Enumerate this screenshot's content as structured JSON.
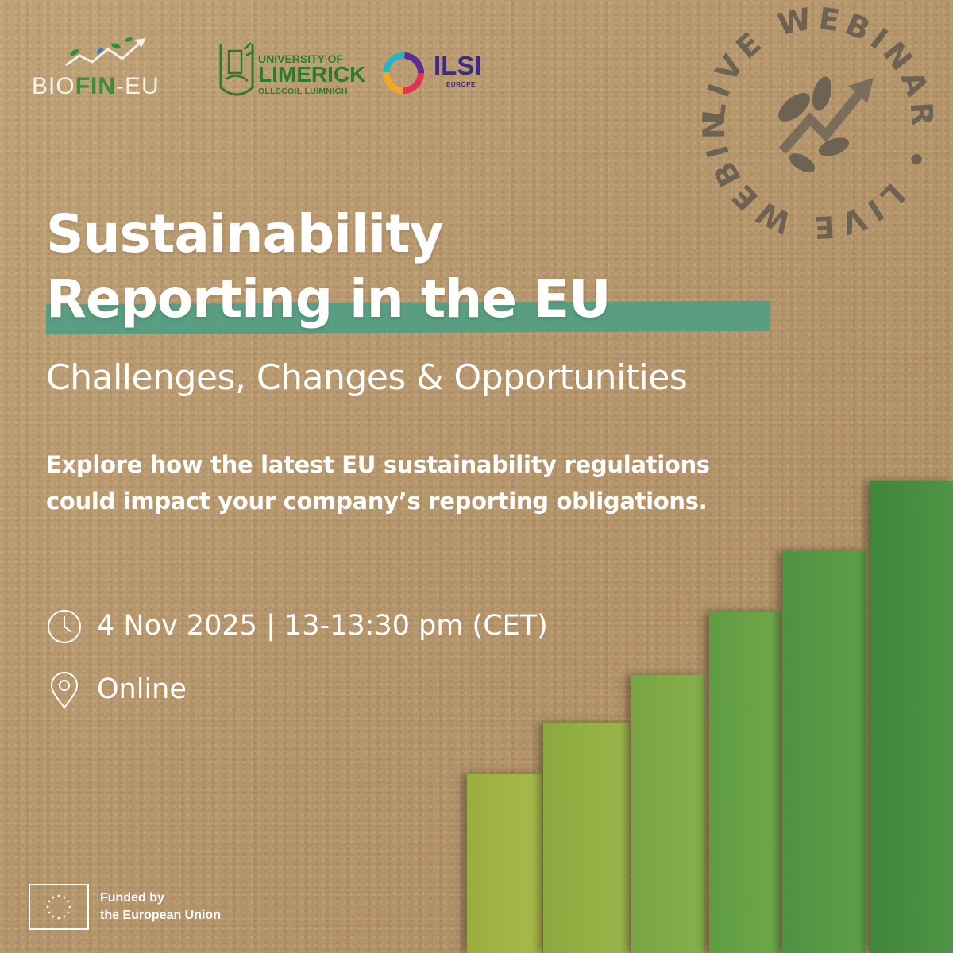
{
  "logos": {
    "biofin": {
      "prefix": "BIO",
      "highlight": "FIN",
      "suffix": "-EU"
    },
    "limerick": {
      "line1": "UNIVERSITY OF",
      "line2": "LIMERICK",
      "line3": "OLLSCOIL LUIMNIGH"
    },
    "ilsi": {
      "name": "ILSI",
      "sub": "EUROPE"
    }
  },
  "seal": {
    "text": "LIVE WEBINAR • LIVE WEBINAR •"
  },
  "headline": {
    "line1": "Sustainability",
    "line2": "Reporting in the EU",
    "subtitle": "Challenges, Changes & Opportunities"
  },
  "description": "Explore how the latest EU sustainability regulations could impact your company’s reporting obligations.",
  "event": {
    "datetime": "4 Nov 2025 | 13-13:30 pm (CET)",
    "location": "Online"
  },
  "footer": {
    "funded_line1": "Funded by",
    "funded_line2": "the European Union"
  },
  "icons": {
    "time": "clock-icon",
    "place": "location-pin-icon",
    "eu": "eu-flag-icon"
  },
  "colors": {
    "background": "#b89a6e",
    "accent_teal": "#4f9f84",
    "brand_green": "#2d7a30",
    "ilsi_purple": "#3a2a8c",
    "bars": [
      "#a3b543",
      "#93b344",
      "#7eaa46",
      "#6aa046",
      "#5a9646",
      "#4a8c42"
    ]
  }
}
